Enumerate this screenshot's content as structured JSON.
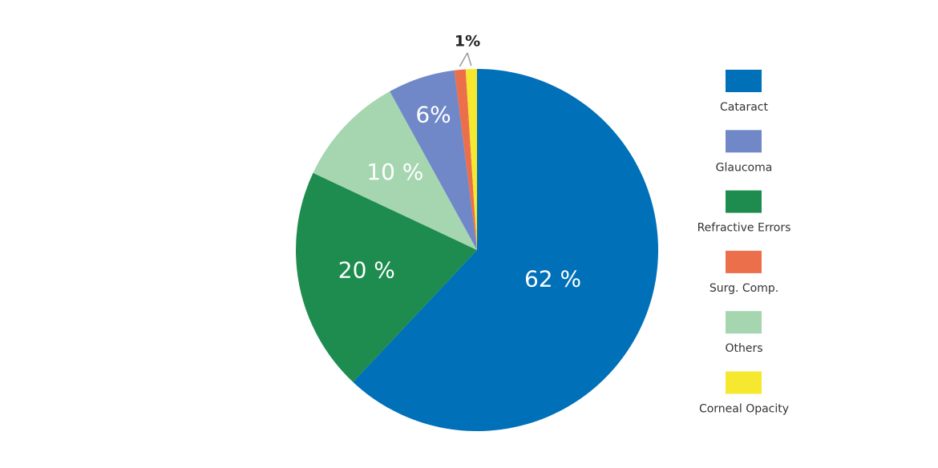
{
  "chart_data": {
    "type": "pie",
    "categories": [
      "Cataract",
      "Refractive Errors",
      "Others",
      "Glaucoma",
      "Surg. Comp.",
      "Corneal Opacity"
    ],
    "values": [
      62,
      20,
      10,
      6,
      1,
      1
    ],
    "value_labels": [
      "62 %",
      "20 %",
      "10 %",
      "6%",
      "1%",
      null
    ],
    "colors": [
      "#0070b8",
      "#1e8c4e",
      "#a5d6b0",
      "#7088c8",
      "#ec6f4b",
      "#f5e82e"
    ],
    "legend": [
      "Cataract",
      "Glaucoma",
      "Refractive Errors",
      "Surg. Comp.",
      "Others",
      "Corneal Opacity"
    ],
    "legend_position": "right"
  }
}
